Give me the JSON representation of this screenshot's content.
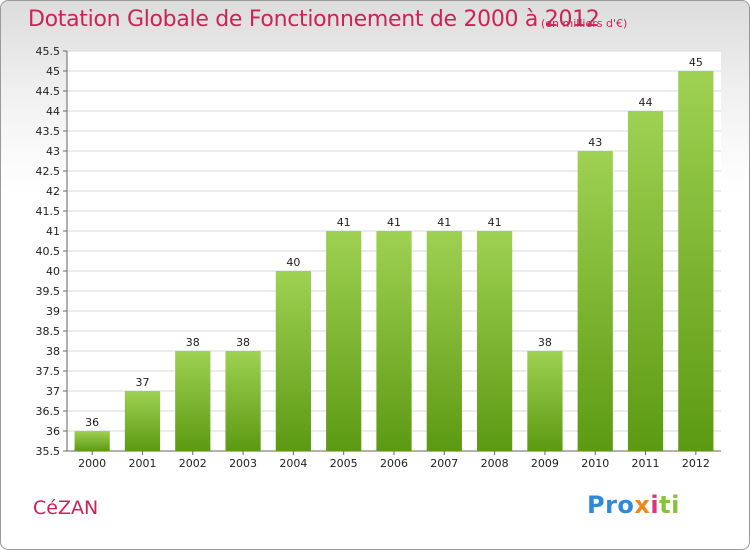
{
  "header": {
    "title": "Dotation Globale de Fonctionnement de 2000 à 2012",
    "unit": "(en milliers d'€)"
  },
  "footer": {
    "commune": "CéZAN",
    "logo_parts": [
      "Pro",
      "x",
      "i",
      "ti"
    ]
  },
  "colors": {
    "title": "#cc2255",
    "bar_top": "#9fd152",
    "bar_bottom": "#5c9a13",
    "grid": "#d9d9d9"
  },
  "chart_data": {
    "type": "bar",
    "title": "Dotation Globale de Fonctionnement de 2000 à 2012",
    "xlabel": "",
    "ylabel": "",
    "categories": [
      "2000",
      "2001",
      "2002",
      "2003",
      "2004",
      "2005",
      "2006",
      "2007",
      "2008",
      "2009",
      "2010",
      "2011",
      "2012"
    ],
    "values": [
      36,
      37,
      38,
      38,
      40,
      41,
      41,
      41,
      41,
      38,
      43,
      44,
      45
    ],
    "ylim": [
      35.5,
      45.5
    ],
    "yticks": [
      "35.5",
      "36",
      "36.5",
      "37",
      "37.5",
      "38",
      "38.5",
      "39",
      "39.5",
      "40",
      "40.5",
      "41",
      "41.5",
      "42",
      "42.5",
      "43",
      "43.5",
      "44",
      "44.5",
      "45",
      "45.5"
    ],
    "grid": true,
    "legend": "none"
  }
}
